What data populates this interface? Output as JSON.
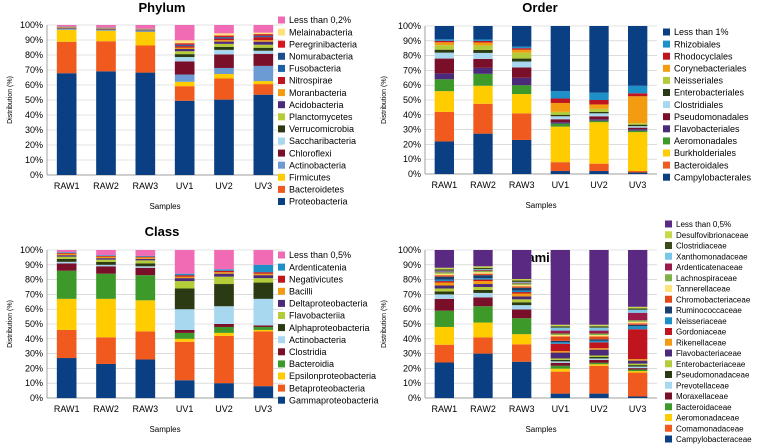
{
  "chart_data": [
    {
      "type": "bar",
      "stacked": true,
      "title": "Phylum",
      "xlabel": "Samples",
      "ylabel": "Distribution (%)",
      "ylim": [
        0,
        100
      ],
      "yticks": [
        "0%",
        "10%",
        "20%",
        "30%",
        "40%",
        "50%",
        "60%",
        "70%",
        "80%",
        "90%",
        "100%"
      ],
      "categories": [
        "RAW1",
        "RAW2",
        "RAW3",
        "UV1",
        "UV2",
        "UV3"
      ],
      "legend_position": "right",
      "series": [
        {
          "name": "Proteobacteria",
          "color": "#0a3f83",
          "values": [
            68,
            69,
            68,
            51,
            50,
            53
          ]
        },
        {
          "name": "Bacteroidetes",
          "color": "#f05a1e",
          "values": [
            21,
            20,
            18,
            10,
            14,
            7
          ]
        },
        {
          "name": "Firmicutes",
          "color": "#ffcc00",
          "values": [
            8,
            7,
            9,
            3,
            3,
            2
          ]
        },
        {
          "name": "Actinobacteria",
          "color": "#6b9bd2",
          "values": [
            0.5,
            0.5,
            0.5,
            5,
            4,
            10
          ]
        },
        {
          "name": "Chloroflexi",
          "color": "#7a0f2a",
          "values": [
            0.3,
            0.3,
            0.3,
            9,
            9,
            8
          ]
        },
        {
          "name": "Saccharibacteria",
          "color": "#a8d8f0",
          "values": [
            0.2,
            0.2,
            0.2,
            3,
            3,
            2
          ]
        },
        {
          "name": "Verrucomicrobia",
          "color": "#2b3a12",
          "values": [
            0.3,
            0.3,
            0.3,
            2,
            2,
            2
          ]
        },
        {
          "name": "Planctomycetes",
          "color": "#b5cc3a",
          "values": [
            0.2,
            0.2,
            0.2,
            2,
            2,
            2
          ]
        },
        {
          "name": "Acidobacteria",
          "color": "#4b2a7a",
          "values": [
            0.2,
            0.2,
            0.2,
            1.5,
            1.5,
            2
          ]
        },
        {
          "name": "Moranbacteria",
          "color": "#f39c12",
          "values": [
            0.1,
            0.1,
            0.1,
            1,
            1,
            1
          ]
        },
        {
          "name": "Nitrospirae",
          "color": "#c0141e",
          "values": [
            0.1,
            0.1,
            0.1,
            1,
            1,
            2
          ]
        },
        {
          "name": "Fusobacteria",
          "color": "#1a5fa8",
          "values": [
            0.1,
            0.1,
            0.1,
            0.5,
            0.5,
            0.5
          ]
        },
        {
          "name": "Nomurabacteria",
          "color": "#1a4f8a",
          "values": [
            0.1,
            0.1,
            0.1,
            0.5,
            0.5,
            0.5
          ]
        },
        {
          "name": "Peregrinibacteria",
          "color": "#d9161d",
          "values": [
            0.1,
            0.1,
            0.1,
            1,
            1,
            1
          ]
        },
        {
          "name": "Melainabacteria",
          "color": "#ffe37a",
          "values": [
            0.1,
            0.1,
            0.1,
            2,
            1.5,
            1
          ]
        },
        {
          "name": "Less than 0,2%",
          "color": "#f06ab4",
          "values": [
            0.9,
            1.5,
            2.3,
            10.5,
            5.5,
            5
          ]
        }
      ]
    },
    {
      "type": "bar",
      "stacked": true,
      "title": "Order",
      "xlabel": "Samples",
      "ylabel": "Distribution (%)",
      "ylim": [
        0,
        100
      ],
      "yticks": [
        "0%",
        "10%",
        "20%",
        "30%",
        "40%",
        "50%",
        "60%",
        "70%",
        "80%",
        "90%",
        "100%"
      ],
      "categories": [
        "RAW1",
        "RAW2",
        "RAW3",
        "UV1",
        "UV2",
        "UV3"
      ],
      "legend_position": "right",
      "series": [
        {
          "name": "Campylobacterales",
          "color": "#0a3f83",
          "values": [
            22,
            27,
            23,
            2,
            2,
            1
          ]
        },
        {
          "name": "Bacteroidales",
          "color": "#f05a1e",
          "values": [
            20,
            20,
            18,
            6,
            5,
            1
          ]
        },
        {
          "name": "Burkholderiales",
          "color": "#ffcc00",
          "values": [
            14,
            12,
            13,
            24,
            28,
            26
          ]
        },
        {
          "name": "Aeromonadales",
          "color": "#3d9a2a",
          "values": [
            8,
            8,
            6,
            2,
            1,
            1
          ]
        },
        {
          "name": "Flavobacteriales",
          "color": "#4b2a7a",
          "values": [
            4,
            4,
            5,
            1,
            1,
            1
          ]
        },
        {
          "name": "Pseudomonadales",
          "color": "#7a0f2a",
          "values": [
            10,
            6,
            7,
            2,
            2,
            1
          ]
        },
        {
          "name": "Clostridiales",
          "color": "#a8d8f0",
          "values": [
            4,
            4,
            4,
            2,
            2,
            1
          ]
        },
        {
          "name": "Enterobacteriales",
          "color": "#2b3a12",
          "values": [
            2,
            2,
            2,
            1,
            1,
            1
          ]
        },
        {
          "name": "Neisseriales",
          "color": "#b5cc3a",
          "values": [
            3,
            3,
            4,
            2,
            2,
            1
          ]
        },
        {
          "name": "Corynebacteriales",
          "color": "#f39c12",
          "values": [
            2,
            2,
            2,
            6,
            3,
            18
          ]
        },
        {
          "name": "Rhodocyclales",
          "color": "#c0141e",
          "values": [
            1,
            1,
            1,
            3,
            3,
            2
          ]
        },
        {
          "name": "Rhizobiales",
          "color": "#1e90c8",
          "values": [
            1,
            1,
            1,
            5,
            5,
            5
          ]
        },
        {
          "name": "Less than 1%",
          "color": "#0a3f83",
          "values": [
            9,
            9,
            14,
            44,
            45,
            40
          ]
        }
      ]
    },
    {
      "type": "bar",
      "stacked": true,
      "title": "Class",
      "xlabel": "Samples",
      "ylabel": "Distribution (%)",
      "ylim": [
        0,
        100
      ],
      "yticks": [
        "0%",
        "10%",
        "20%",
        "30%",
        "40%",
        "50%",
        "60%",
        "70%",
        "80%",
        "90%",
        "100%"
      ],
      "categories": [
        "RAW1",
        "RAW2",
        "RAW3",
        "UV1",
        "UV2",
        "UV3"
      ],
      "legend_position": "right",
      "series": [
        {
          "name": "Gammaproteobacteria",
          "color": "#0a3f83",
          "values": [
            27,
            23,
            26,
            12,
            10,
            8
          ]
        },
        {
          "name": "Betaproteobacteria",
          "color": "#f05a1e",
          "values": [
            19,
            18,
            19,
            26,
            32,
            37
          ]
        },
        {
          "name": "Epsilonproteobacteria",
          "color": "#ffcc00",
          "values": [
            21,
            26,
            21,
            2,
            2,
            1
          ]
        },
        {
          "name": "Bacteroidia",
          "color": "#3d9a2a",
          "values": [
            19,
            17,
            17,
            4,
            4,
            2
          ]
        },
        {
          "name": "Clostridia",
          "color": "#7a0f2a",
          "values": [
            5,
            5,
            5,
            2,
            2,
            1
          ]
        },
        {
          "name": "Actinobacteria",
          "color": "#a8d8f0",
          "values": [
            1,
            1,
            1,
            14,
            12,
            18
          ]
        },
        {
          "name": "Alphaproteobacteria",
          "color": "#2b3a12",
          "values": [
            2,
            2,
            2,
            14,
            15,
            11
          ]
        },
        {
          "name": "Flavobacteriia",
          "color": "#b5cc3a",
          "values": [
            1.5,
            1.5,
            2,
            5,
            5,
            3
          ]
        },
        {
          "name": "Deltaproteobacteria",
          "color": "#4b2a7a",
          "values": [
            1,
            1,
            1,
            2,
            2,
            2
          ]
        },
        {
          "name": "Bacilli",
          "color": "#f39c12",
          "values": [
            1,
            1,
            1,
            1,
            1,
            1
          ]
        },
        {
          "name": "Negativicutes",
          "color": "#c0141e",
          "values": [
            0.5,
            0.5,
            0.5,
            1,
            1,
            1
          ]
        },
        {
          "name": "Ardenticatenia",
          "color": "#1e90c8",
          "values": [
            0.5,
            0.5,
            0.5,
            1,
            1,
            5
          ]
        },
        {
          "name": "Less than 0,5%",
          "color": "#f06ab4",
          "values": [
            1.5,
            3.5,
            4,
            16,
            13,
            10
          ]
        }
      ]
    },
    {
      "type": "bar",
      "stacked": true,
      "title": "Family",
      "xlabel": "Samples",
      "ylabel": "Distribution (%)",
      "ylim": [
        0,
        100
      ],
      "yticks": [
        "0%",
        "10%",
        "20%",
        "30%",
        "40%",
        "50%",
        "60%",
        "70%",
        "80%",
        "90%",
        "100%"
      ],
      "categories": [
        "RAW1",
        "RAW2",
        "RAW3",
        "UV1",
        "UV2",
        "UV3"
      ],
      "legend_position": "right",
      "series": [
        {
          "name": "Campylobacteraceae",
          "color": "#0a3f83",
          "values": [
            24,
            30,
            25,
            3,
            3,
            1
          ]
        },
        {
          "name": "Comamonadaceae",
          "color": "#f05a1e",
          "values": [
            12,
            11,
            12,
            15,
            19,
            16
          ]
        },
        {
          "name": "Aeromonadaceae",
          "color": "#ffcc00",
          "values": [
            12,
            10,
            7,
            2,
            1,
            1
          ]
        },
        {
          "name": "Bacteroidaceae",
          "color": "#3d9a2a",
          "values": [
            11,
            11,
            11,
            2,
            1,
            1
          ]
        },
        {
          "name": "Moraxellaceae",
          "color": "#7a0f2a",
          "values": [
            8,
            6,
            6,
            2,
            2,
            1
          ]
        },
        {
          "name": "Prevotellaceae",
          "color": "#a8d8f0",
          "values": [
            3,
            3,
            3,
            1,
            1,
            1
          ]
        },
        {
          "name": "Pseudomonadaceae",
          "color": "#2b3a12",
          "values": [
            2,
            2,
            2,
            1,
            1,
            1
          ]
        },
        {
          "name": "Enterobacteriaceae",
          "color": "#b5cc3a",
          "values": [
            2,
            2,
            2,
            1,
            1,
            1
          ]
        },
        {
          "name": "Flavobacteriaceae",
          "color": "#4b2a7a",
          "values": [
            2,
            2,
            2,
            4,
            4,
            2
          ]
        },
        {
          "name": "Rikenellaceae",
          "color": "#f39c12",
          "values": [
            2,
            2,
            2,
            1,
            1,
            1
          ]
        },
        {
          "name": "Gordoniaceae",
          "color": "#c0141e",
          "values": [
            1,
            1,
            1,
            5,
            4,
            20
          ]
        },
        {
          "name": "Neisseriaceae",
          "color": "#1e90c8",
          "values": [
            1,
            1,
            1,
            1,
            1,
            2
          ]
        },
        {
          "name": "Ruminococcaceae",
          "color": "#1a3f6e",
          "values": [
            2,
            2,
            2,
            1,
            1,
            1
          ]
        },
        {
          "name": "Chromobacteriaceae",
          "color": "#e04a1a",
          "values": [
            1,
            1,
            1,
            3,
            2,
            1
          ]
        },
        {
          "name": "Tannerellaceae",
          "color": "#ffe37a",
          "values": [
            1,
            1,
            1,
            1,
            1,
            1
          ]
        },
        {
          "name": "Lachnospiraceae",
          "color": "#7fb24a",
          "values": [
            1,
            1,
            1,
            1,
            1,
            1
          ]
        },
        {
          "name": "Ardenticatenaceae",
          "color": "#9a1a4a",
          "values": [
            0.5,
            0.5,
            0.5,
            2,
            2,
            5
          ]
        },
        {
          "name": "Xanthomonadaceae",
          "color": "#7ac6e8",
          "values": [
            0.5,
            0.5,
            0.5,
            2,
            2,
            2
          ]
        },
        {
          "name": "Clostridiaceae",
          "color": "#3a4a1a",
          "values": [
            1,
            1,
            1,
            1,
            1,
            1
          ]
        },
        {
          "name": "Desulfovibrionaceae",
          "color": "#c8d84a",
          "values": [
            1,
            1,
            1,
            1,
            1,
            1
          ]
        },
        {
          "name": "Less than 0,5%",
          "color": "#5a2a82",
          "values": [
            12,
            11,
            20,
            51,
            51,
            38
          ]
        }
      ]
    }
  ]
}
